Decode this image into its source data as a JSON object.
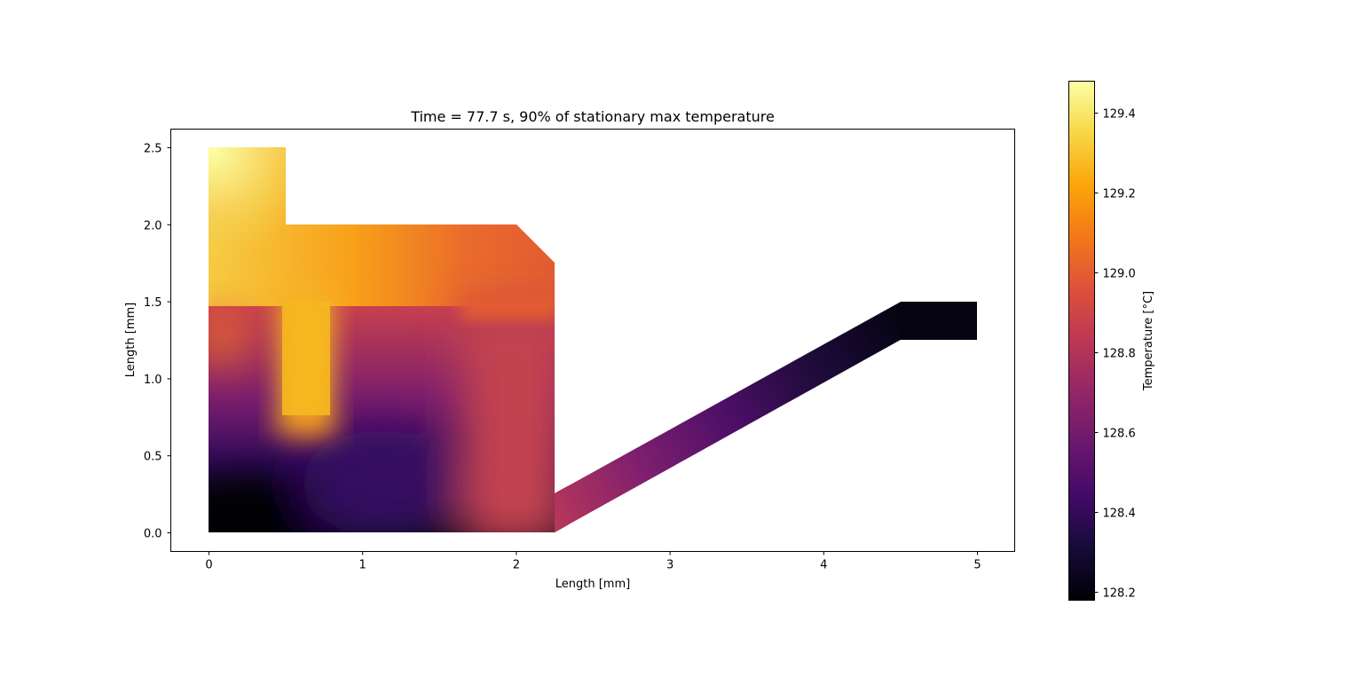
{
  "chart_data": {
    "type": "heatmap",
    "title": "Time = 77.7 s, 90% of stationary max temperature",
    "xlabel": "Length [mm]",
    "ylabel": "Length [mm]",
    "xlim": [
      -0.25,
      5.25
    ],
    "ylim": [
      -0.125,
      2.625
    ],
    "xticks": [
      0,
      1,
      2,
      3,
      4,
      5
    ],
    "xtick_labels": [
      "0",
      "1",
      "2",
      "3",
      "4",
      "5"
    ],
    "yticks": [
      0.0,
      0.5,
      1.0,
      1.5,
      2.0,
      2.5
    ],
    "ytick_labels": [
      "0.0",
      "0.5",
      "1.0",
      "1.5",
      "2.0",
      "2.5"
    ],
    "colormap": "inferno",
    "colorbar": {
      "label": "Temperature [°C]",
      "range": [
        128.18,
        129.48
      ],
      "ticks": [
        128.2,
        128.4,
        128.6,
        128.8,
        129.0,
        129.2,
        129.4
      ],
      "tick_labels": [
        "128.2",
        "128.4",
        "128.6",
        "128.8",
        "129.0",
        "129.2",
        "129.4"
      ]
    },
    "geometry_outline_mm": [
      [
        0,
        0
      ],
      [
        2.25,
        0
      ],
      [
        4.5,
        1.25
      ],
      [
        5,
        1.25
      ],
      [
        5,
        1.5
      ],
      [
        4.5,
        1.5
      ],
      [
        2.25,
        0.25
      ],
      [
        2.25,
        1.75
      ],
      [
        2,
        2
      ],
      [
        0.5,
        2
      ],
      [
        0.5,
        2.5
      ],
      [
        0,
        2.5
      ]
    ],
    "temperature_samples": [
      {
        "x": 0.1,
        "y": 2.4,
        "value": 129.45
      },
      {
        "x": 0.4,
        "y": 2.1,
        "value": 129.35
      },
      {
        "x": 0.3,
        "y": 1.7,
        "value": 129.3
      },
      {
        "x": 1.0,
        "y": 1.75,
        "value": 129.17
      },
      {
        "x": 1.6,
        "y": 1.75,
        "value": 129.05
      },
      {
        "x": 2.1,
        "y": 1.7,
        "value": 129.0
      },
      {
        "x": 0.65,
        "y": 1.0,
        "value": 129.3
      },
      {
        "x": 0.65,
        "y": 0.8,
        "value": 129.25
      },
      {
        "x": 0.1,
        "y": 1.3,
        "value": 129.1
      },
      {
        "x": 0.1,
        "y": 0.9,
        "value": 128.85
      },
      {
        "x": 1.2,
        "y": 1.0,
        "value": 128.75
      },
      {
        "x": 1.9,
        "y": 0.7,
        "value": 128.85
      },
      {
        "x": 0.5,
        "y": 0.5,
        "value": 128.45
      },
      {
        "x": 1.4,
        "y": 0.2,
        "value": 128.4
      },
      {
        "x": 0.2,
        "y": 0.05,
        "value": 128.2
      },
      {
        "x": 2.3,
        "y": 0.12,
        "value": 128.8
      },
      {
        "x": 3.0,
        "y": 0.55,
        "value": 128.6
      },
      {
        "x": 3.5,
        "y": 0.8,
        "value": 128.45
      },
      {
        "x": 4.0,
        "y": 1.1,
        "value": 128.3
      },
      {
        "x": 4.75,
        "y": 1.38,
        "value": 128.2
      }
    ]
  }
}
